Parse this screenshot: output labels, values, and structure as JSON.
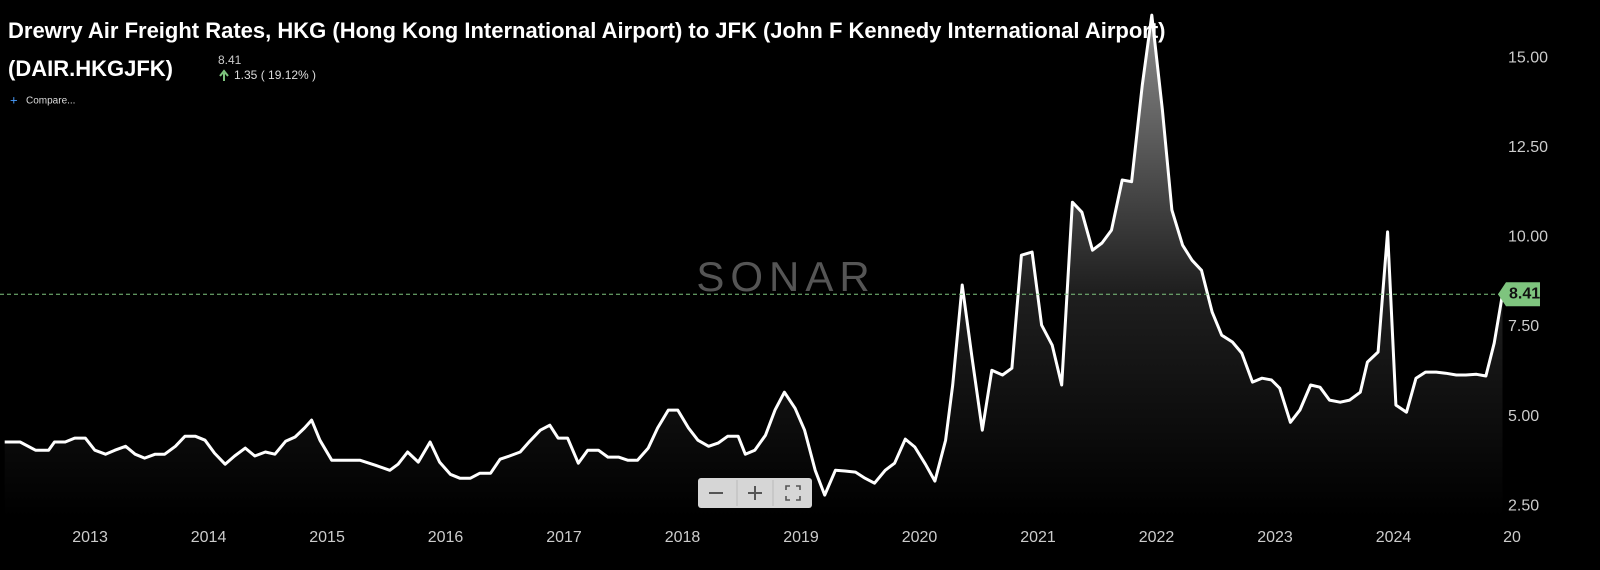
{
  "chart_data": {
    "type": "line",
    "title": "Drewry Air Freight Rates, HKG (Hong Kong International Airport) to JFK (John F Kennedy International Airport)",
    "ticker": "(DAIR.HKGJFK)",
    "change": "1.35 ( 19.12% )",
    "compare_label": "Compare...",
    "watermark": "SONAR",
    "color": "#ffffff",
    "last_color": "#7ec47e",
    "x": [
      2012.28,
      2012.41,
      2012.54,
      2012.65,
      2012.7,
      2012.79,
      2012.87,
      2012.96,
      2013.04,
      2013.13,
      2013.21,
      2013.3,
      2013.38,
      2013.46,
      2013.55,
      2013.63,
      2013.72,
      2013.8,
      2013.89,
      2013.97,
      2014.05,
      2014.14,
      2014.22,
      2014.31,
      2014.39,
      2014.48,
      2014.56,
      2014.65,
      2014.73,
      2014.81,
      2014.87,
      2014.94,
      2015.04,
      2015.15,
      2015.28,
      2015.41,
      2015.53,
      2015.6,
      2015.68,
      2015.77,
      2015.87,
      2015.95,
      2016.04,
      2016.12,
      2016.21,
      2016.29,
      2016.38,
      2016.46,
      2016.54,
      2016.63,
      2016.71,
      2016.8,
      2016.88,
      2016.95,
      2017.03,
      2017.12,
      2017.2,
      2017.29,
      2017.37,
      2017.46,
      2017.54,
      2017.62,
      2017.71,
      2017.79,
      2017.88,
      2017.96,
      2018.05,
      2018.13,
      2018.22,
      2018.3,
      2018.38,
      2018.47,
      2018.53,
      2018.61,
      2018.7,
      2018.78,
      2018.86,
      2018.95,
      2019.03,
      2019.12,
      2019.2,
      2019.29,
      2019.37,
      2019.46,
      2019.54,
      2019.62,
      2019.71,
      2019.79,
      2019.88,
      2019.96,
      2020.05,
      2020.13,
      2020.22,
      2020.28,
      2020.36,
      2020.44,
      2020.53,
      2020.61,
      2020.7,
      2020.78,
      2020.86,
      2020.95,
      2021.03,
      2021.12,
      2021.2,
      2021.29,
      2021.37,
      2021.46,
      2021.54,
      2021.62,
      2021.71,
      2021.79,
      2021.88,
      2021.96,
      2022.05,
      2022.13,
      2022.22,
      2022.3,
      2022.38,
      2022.47,
      2022.55,
      2022.64,
      2022.72,
      2022.81,
      2022.89,
      2022.97,
      2023.04,
      2023.13,
      2023.21,
      2023.3,
      2023.38,
      2023.46,
      2023.55,
      2023.63,
      2023.72,
      2023.78,
      2023.87,
      2023.95,
      2024.02,
      2024.11,
      2024.19,
      2024.27,
      2024.36,
      2024.44,
      2024.53,
      2024.61,
      2024.7,
      2024.78,
      2024.85,
      2024.92
    ],
    "values": [
      4.29,
      4.29,
      4.06,
      4.06,
      4.29,
      4.29,
      4.4,
      4.4,
      4.06,
      3.95,
      4.06,
      4.17,
      3.95,
      3.84,
      3.95,
      3.95,
      4.17,
      4.45,
      4.45,
      4.34,
      3.98,
      3.67,
      3.9,
      4.12,
      3.9,
      4.01,
      3.95,
      4.31,
      4.43,
      4.68,
      4.9,
      4.34,
      3.78,
      3.78,
      3.78,
      3.64,
      3.5,
      3.67,
      4.01,
      3.73,
      4.29,
      3.73,
      3.39,
      3.28,
      3.28,
      3.42,
      3.42,
      3.81,
      3.9,
      4.01,
      4.31,
      4.62,
      4.76,
      4.4,
      4.4,
      3.7,
      4.06,
      4.06,
      3.87,
      3.87,
      3.78,
      3.78,
      4.12,
      4.68,
      5.18,
      5.18,
      4.68,
      4.34,
      4.17,
      4.26,
      4.45,
      4.45,
      3.95,
      4.06,
      4.48,
      5.18,
      5.68,
      5.23,
      4.62,
      3.5,
      2.81,
      3.5,
      3.48,
      3.45,
      3.28,
      3.14,
      3.5,
      3.7,
      4.37,
      4.15,
      3.67,
      3.2,
      4.34,
      5.88,
      8.67,
      6.71,
      4.62,
      6.29,
      6.16,
      6.35,
      9.5,
      9.59,
      7.55,
      6.99,
      5.88,
      10.98,
      10.7,
      9.64,
      9.84,
      10.2,
      11.6,
      11.55,
      14.25,
      16.2,
      13.55,
      10.76,
      9.78,
      9.36,
      9.08,
      7.91,
      7.27,
      7.08,
      6.77,
      5.96,
      6.07,
      6.02,
      5.79,
      4.84,
      5.18,
      5.88,
      5.82,
      5.46,
      5.4,
      5.46,
      5.68,
      6.52,
      6.8,
      10.15,
      5.32,
      5.12,
      6.07,
      6.24,
      6.24,
      6.21,
      6.16,
      6.16,
      6.18,
      6.13,
      7.05,
      8.41
    ],
    "xlim": [
      2012.24,
      2025.0
    ],
    "xticks": [
      2013,
      2014,
      2015,
      2016,
      2017,
      2018,
      2019,
      2020,
      2021,
      2022,
      2023,
      2024,
      {
        "value": 2025,
        "label": "20"
      }
    ],
    "ylim": [
      2.17,
      16.62
    ],
    "yticks": [
      {
        "value": 2.5,
        "label": "2.50"
      },
      {
        "value": 5,
        "label": "5.00"
      },
      {
        "value": 7.5,
        "label": "7.50"
      },
      {
        "value": 10,
        "label": "10.00"
      },
      {
        "value": 12.5,
        "label": "12.50"
      },
      {
        "value": 15,
        "label": "15.00"
      }
    ]
  }
}
